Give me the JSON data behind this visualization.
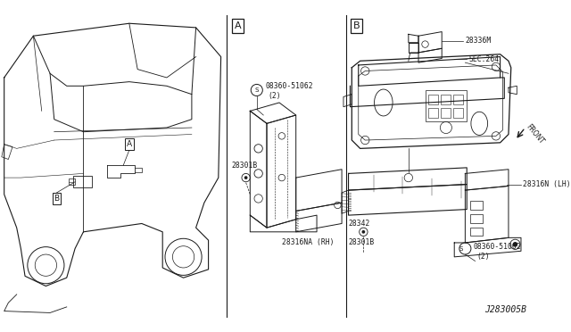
{
  "bg_color": "#ffffff",
  "line_color": "#1a1a1a",
  "fig_width": 6.4,
  "fig_height": 3.72,
  "dpi": 100,
  "diagram_code": "J283005B",
  "section_A_label": "A",
  "section_B_label": "B",
  "text_color": "#1a1a1a",
  "part_font_size": 5.8,
  "label_font_size": 8,
  "diagram_id_fontsize": 7
}
